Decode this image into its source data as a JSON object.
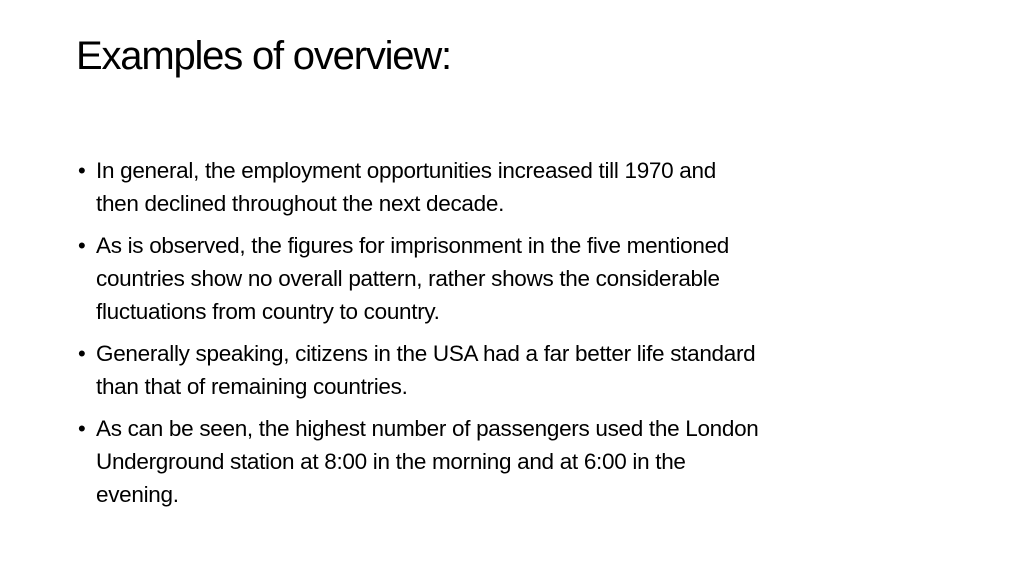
{
  "title": "Examples of overview:",
  "bullets": [
    [
      "In general, the employment opportunities increased till 1970 and",
      "then declined throughout the next decade."
    ],
    [
      "As is observed, the figures for imprisonment in the five mentioned",
      "countries show no overall pattern, rather shows the considerable",
      "fluctuations from country to country."
    ],
    [
      "Generally speaking, citizens in the USA had a far better life standard",
      "than that of remaining countries."
    ],
    [
      "As can be seen, the highest number of passengers used the London",
      "Underground station at 8:00 in the morning and at 6:00 in the",
      "evening."
    ]
  ]
}
